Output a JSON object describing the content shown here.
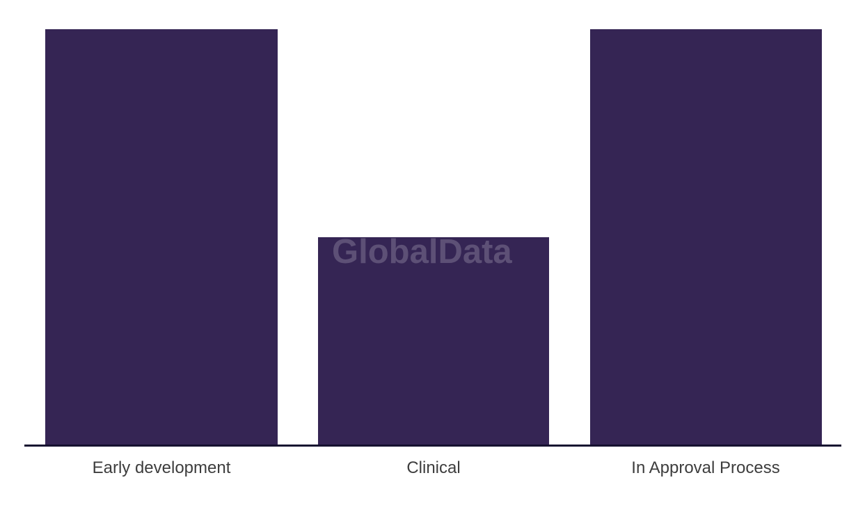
{
  "chart_data": {
    "type": "bar",
    "categories": [
      "Early development",
      "Clinical",
      "In Approval Process"
    ],
    "values": [
      2,
      1,
      2
    ],
    "title": "",
    "xlabel": "",
    "ylabel": "",
    "grid": false,
    "legend": false,
    "y_axis_visible": false,
    "bar_color": "#352554",
    "axis_line_color": "#161130",
    "label_color": "#3d3d3d",
    "watermark": {
      "text": "GlobalData",
      "color": "rgba(255, 255, 255, 0.2)"
    }
  }
}
